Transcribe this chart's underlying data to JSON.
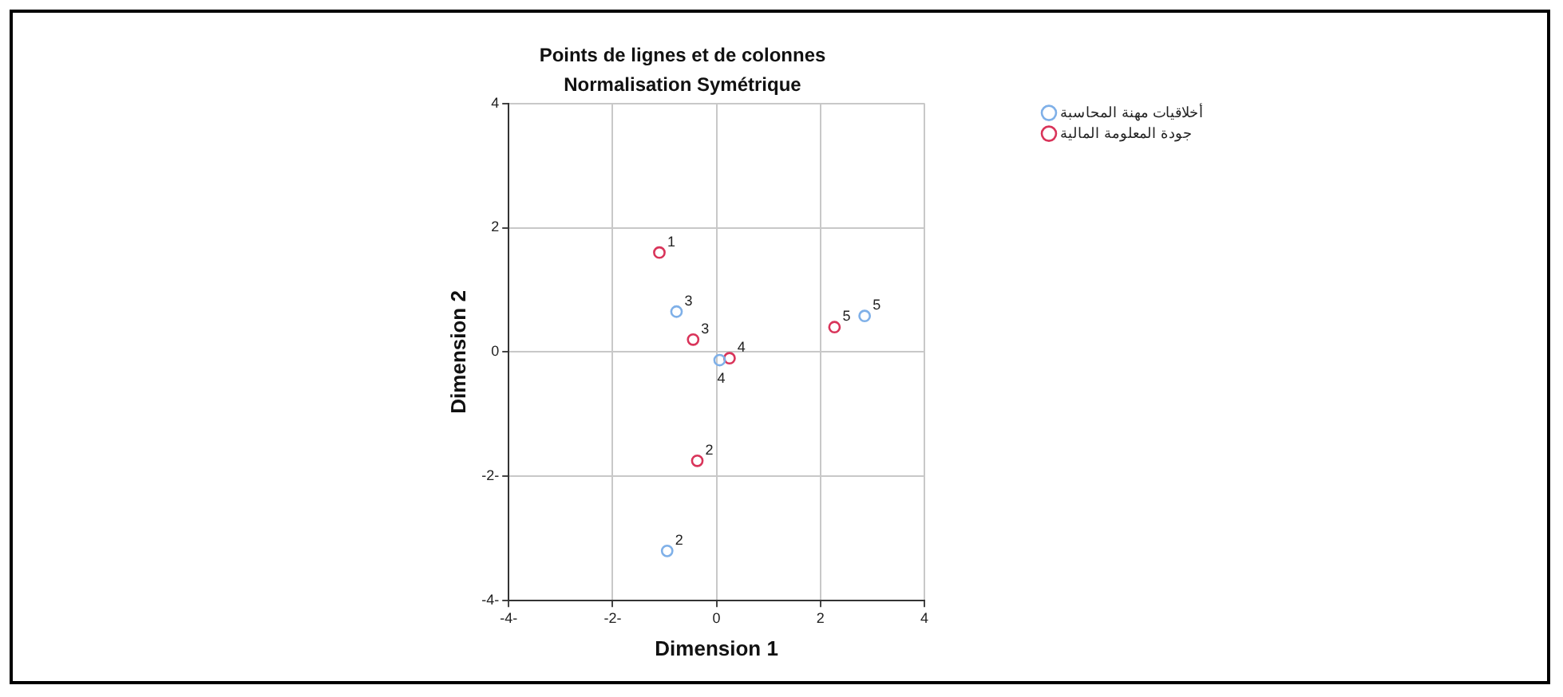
{
  "chart_data": {
    "type": "scatter",
    "title": "Points de lignes et de colonnes",
    "subtitle": "Normalisation Symétrique",
    "xlabel": "Dimension 1",
    "ylabel": "Dimension 2",
    "series": [
      {
        "name": "أخلاقيات مهنة المحاسبة",
        "color": "#7fb0e8",
        "x": [
          -0.95,
          -0.77,
          0.06,
          2.85
        ],
        "values": [
          -3.2,
          0.65,
          -0.13,
          0.58
        ]
      },
      {
        "name": "جودة المعلومة المالية",
        "color": "#d9345a",
        "x": [
          -1.1,
          -0.37,
          -0.45,
          0.25,
          2.27
        ],
        "values": [
          1.6,
          -1.75,
          0.2,
          -0.1,
          0.4
        ]
      }
    ],
    "annotations": [
      {
        "text": "2",
        "x": -0.95,
        "y": -3.2
      },
      {
        "text": "3",
        "x": -0.77,
        "y": 0.65
      },
      {
        "text": "4",
        "x": 0.25,
        "y": -0.1
      },
      {
        "text": "4",
        "x": 0.06,
        "y": -0.13
      },
      {
        "text": "5",
        "x": 2.85,
        "y": 0.58
      },
      {
        "text": "1",
        "x": -1.1,
        "y": 1.6
      },
      {
        "text": "2",
        "x": -0.37,
        "y": -1.75
      },
      {
        "text": "3",
        "x": -0.45,
        "y": 0.2
      },
      {
        "text": "5",
        "x": 2.27,
        "y": 0.4
      }
    ],
    "xlim": [
      -4,
      4
    ],
    "xticks": [
      {
        "value": -4,
        "label": "-4-"
      },
      {
        "value": -2,
        "label": "-2-"
      },
      0,
      2,
      4
    ],
    "ylim": [
      -4,
      4
    ],
    "yticks": [
      {
        "value": -4,
        "label": "-4-"
      },
      {
        "value": -2,
        "label": "-2-"
      },
      0,
      2,
      4
    ],
    "grid": true,
    "legend": "top right",
    "marker": "circle"
  }
}
